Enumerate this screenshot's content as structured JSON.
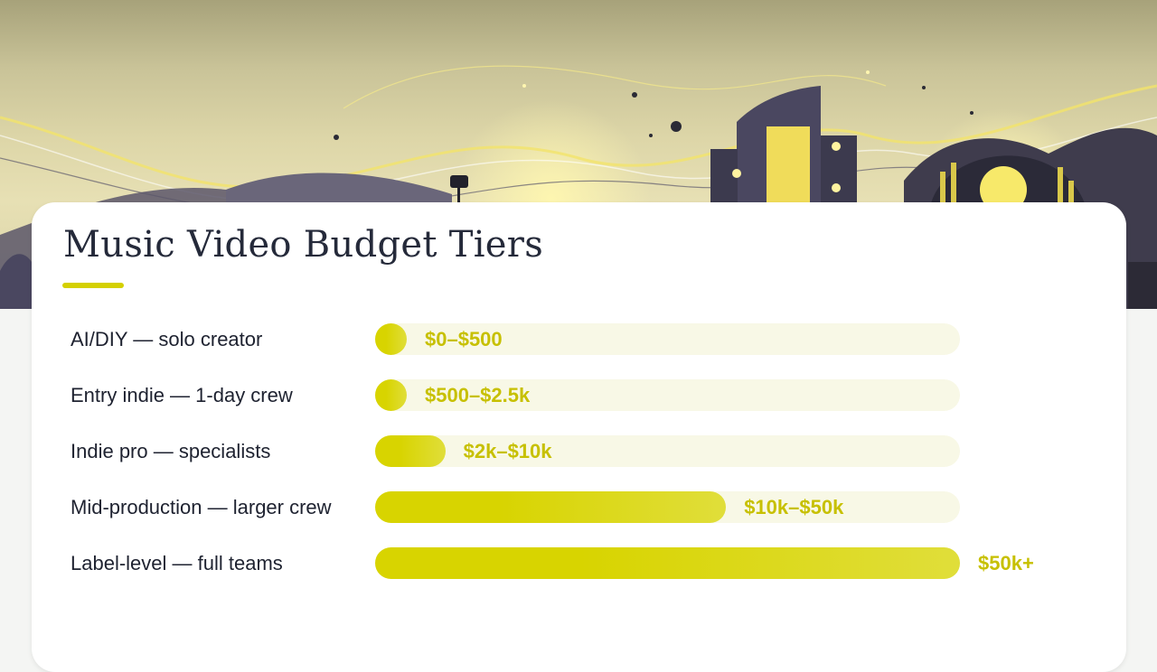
{
  "page": {
    "title": "Music Video Budget Tiers",
    "accent_color": "#d4d000"
  },
  "chart_data": {
    "type": "bar",
    "orientation": "horizontal",
    "title": "Music Video Budget Tiers",
    "categories": [
      "AI/DIY — solo creator",
      "Entry indie — 1-day crew",
      "Indie pro — specialists",
      "Mid-production — larger crew",
      "Label-level — full teams"
    ],
    "value_labels": [
      "$0–$500",
      "$500–$2.5k",
      "$2k–$10k",
      "$10k–$50k",
      "$50k+"
    ],
    "values": [
      0.05,
      0.05,
      0.12,
      0.6,
      1.0
    ],
    "value_unit": "fraction of full bar length",
    "xlim": [
      0,
      1
    ],
    "bar_color": "#d8d400",
    "track_color": "#f8f8e6",
    "label_color": "#c7c000"
  }
}
